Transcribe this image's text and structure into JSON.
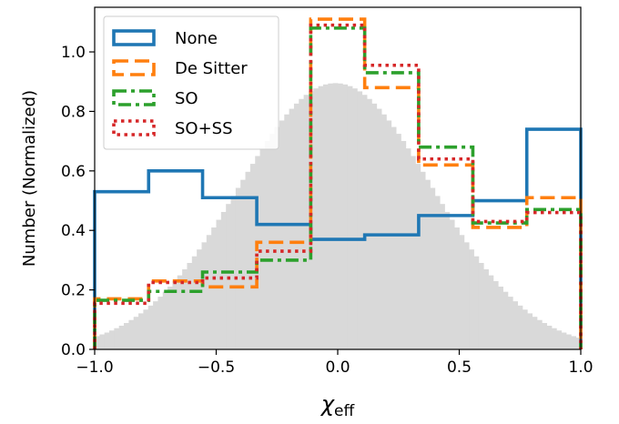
{
  "chart_data": {
    "type": "histogram",
    "title": "",
    "xlabel_main": "χ",
    "xlabel_sub": "eff",
    "ylabel": "Number (Normalized)",
    "xlim": [
      -1.0,
      1.0
    ],
    "ylim": [
      0.0,
      1.15
    ],
    "x_ticks": [
      {
        "value": -1.0,
        "label": "−1.0"
      },
      {
        "value": -0.5,
        "label": "−0.5"
      },
      {
        "value": 0.0,
        "label": "0.0"
      },
      {
        "value": 0.5,
        "label": "0.5"
      },
      {
        "value": 1.0,
        "label": "1.0"
      }
    ],
    "y_ticks": [
      {
        "value": 0.0,
        "label": "0.0"
      },
      {
        "value": 0.2,
        "label": "0.2"
      },
      {
        "value": 0.4,
        "label": "0.4"
      },
      {
        "value": 0.6,
        "label": "0.6"
      },
      {
        "value": 0.8,
        "label": "0.8"
      },
      {
        "value": 1.0,
        "label": "1.0"
      }
    ],
    "grid": false,
    "legend_position": "upper-left",
    "bin_edges": [
      -1.0,
      -0.778,
      -0.556,
      -0.333,
      -0.111,
      0.111,
      0.333,
      0.556,
      0.778,
      1.0
    ],
    "series": [
      {
        "name": "None",
        "color": "#1f77b4",
        "style": "solid",
        "values": [
          0.53,
          0.6,
          0.51,
          0.42,
          0.37,
          0.385,
          0.45,
          0.5,
          0.74
        ]
      },
      {
        "name": "De Sitter",
        "color": "#ff7f0e",
        "style": "dashed",
        "values": [
          0.17,
          0.23,
          0.21,
          0.36,
          1.11,
          0.88,
          0.62,
          0.41,
          0.51
        ]
      },
      {
        "name": "SO",
        "color": "#2ca02c",
        "style": "dashdot",
        "values": [
          0.165,
          0.195,
          0.26,
          0.3,
          1.08,
          0.93,
          0.68,
          0.425,
          0.47
        ]
      },
      {
        "name": "SO+SS",
        "color": "#d62728",
        "style": "dotted",
        "values": [
          0.155,
          0.225,
          0.24,
          0.33,
          1.09,
          0.955,
          0.64,
          0.43,
          0.46
        ]
      }
    ],
    "background_histogram": {
      "color": "#d9d9d9",
      "distribution": "truncated-gaussian",
      "peak": 0.895,
      "center": -0.01,
      "sigma": 0.4,
      "n_bins": 100
    }
  }
}
